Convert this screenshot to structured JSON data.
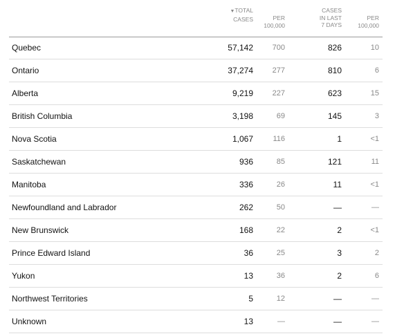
{
  "table": {
    "header": [
      {
        "lines": [
          "TOTAL",
          "CASES"
        ]
      },
      {
        "lines": [
          "PER",
          "100,000"
        ]
      },
      {
        "lines": [
          "CASES",
          "IN LAST",
          "7 DAYS"
        ]
      },
      {
        "lines": [
          "PER",
          "100,000"
        ]
      }
    ],
    "rows": [
      [
        "Quebec",
        "57,142",
        "700",
        "826",
        "10"
      ],
      [
        "Ontario",
        "37,274",
        "277",
        "810",
        "6"
      ],
      [
        "Alberta",
        "9,219",
        "227",
        "623",
        "15"
      ],
      [
        "British Columbia",
        "3,198",
        "69",
        "145",
        "3"
      ],
      [
        "Nova Scotia",
        "1,067",
        "116",
        "1",
        "<1"
      ],
      [
        "Saskatchewan",
        "936",
        "85",
        "121",
        "11"
      ],
      [
        "Manitoba",
        "336",
        "26",
        "11",
        "<1"
      ],
      [
        "Newfoundland and Labrador",
        "262",
        "50",
        "—",
        "—"
      ],
      [
        "New Brunswick",
        "168",
        "22",
        "2",
        "<1"
      ],
      [
        "Prince Edward Island",
        "36",
        "25",
        "3",
        "2"
      ],
      [
        "Yukon",
        "13",
        "36",
        "2",
        "6"
      ],
      [
        "Northwest Territories",
        "5",
        "12",
        "—",
        "—"
      ],
      [
        "Unknown",
        "13",
        "—",
        "—",
        "—"
      ]
    ]
  }
}
